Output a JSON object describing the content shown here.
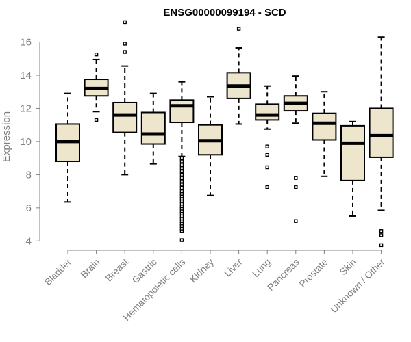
{
  "chart_data": {
    "type": "boxplot",
    "title": "ENSG00000099194 - SCD",
    "xlabel": "",
    "ylabel": "Expression",
    "ylim": [
      3.6,
      17.3
    ],
    "yticks": [
      4,
      6,
      8,
      10,
      12,
      14,
      16
    ],
    "categories": [
      "Bladder",
      "Brain",
      "Breast",
      "Gastric",
      "Hematopoietic cells",
      "Kidney",
      "Liver",
      "Lung",
      "Pancreas",
      "Prostate",
      "Skin",
      "Unknown / Other"
    ],
    "box_color": "#ede6cc",
    "series": [
      {
        "name": "Bladder",
        "whisker_low": 6.35,
        "q1": 8.8,
        "median": 10.0,
        "q3": 11.05,
        "whisker_high": 12.9,
        "outliers": []
      },
      {
        "name": "Brain",
        "whisker_low": 11.8,
        "q1": 12.75,
        "median": 13.2,
        "q3": 13.75,
        "whisker_high": 14.95,
        "outliers": [
          11.3,
          15.25
        ]
      },
      {
        "name": "Breast",
        "whisker_low": 8.0,
        "q1": 10.55,
        "median": 11.6,
        "q3": 12.35,
        "whisker_high": 14.55,
        "outliers": [
          15.4,
          15.9,
          17.2
        ]
      },
      {
        "name": "Gastric",
        "whisker_low": 8.65,
        "q1": 9.85,
        "median": 10.45,
        "q3": 11.75,
        "whisker_high": 12.9,
        "outliers": []
      },
      {
        "name": "Hematopoietic cells",
        "whisker_low": 9.1,
        "q1": 11.15,
        "median": 12.15,
        "q3": 12.5,
        "whisker_high": 13.6,
        "outliers": [
          4.05,
          4.6,
          4.75,
          4.9,
          5.05,
          5.2,
          5.35,
          5.5,
          5.65,
          5.8,
          5.95,
          6.1,
          6.25,
          6.4,
          6.55,
          6.7,
          6.85,
          7.0,
          7.2,
          7.4,
          7.6,
          7.8,
          8.0,
          8.2,
          8.4,
          8.6,
          8.8,
          9.0
        ]
      },
      {
        "name": "Kidney",
        "whisker_low": 6.75,
        "q1": 9.2,
        "median": 10.05,
        "q3": 11.0,
        "whisker_high": 12.7,
        "outliers": []
      },
      {
        "name": "Liver",
        "whisker_low": 11.05,
        "q1": 12.6,
        "median": 13.35,
        "q3": 14.15,
        "whisker_high": 15.65,
        "outliers": [
          16.8
        ]
      },
      {
        "name": "Lung",
        "whisker_low": 10.75,
        "q1": 11.3,
        "median": 11.6,
        "q3": 12.25,
        "whisker_high": 13.35,
        "outliers": [
          7.25,
          8.45,
          9.2,
          9.7
        ]
      },
      {
        "name": "Pancreas",
        "whisker_low": 11.1,
        "q1": 11.85,
        "median": 12.3,
        "q3": 12.75,
        "whisker_high": 13.95,
        "outliers": [
          5.2,
          7.25,
          7.8
        ]
      },
      {
        "name": "Prostate",
        "whisker_low": 7.9,
        "q1": 10.1,
        "median": 11.1,
        "q3": 11.7,
        "whisker_high": 13.0,
        "outliers": []
      },
      {
        "name": "Skin",
        "whisker_low": 5.5,
        "q1": 7.65,
        "median": 9.9,
        "q3": 10.95,
        "whisker_high": 11.2,
        "outliers": []
      },
      {
        "name": "Unknown / Other",
        "whisker_low": 5.85,
        "q1": 9.05,
        "median": 10.35,
        "q3": 12.0,
        "whisker_high": 16.3,
        "outliers": [
          3.75,
          4.35,
          4.6
        ]
      }
    ]
  }
}
